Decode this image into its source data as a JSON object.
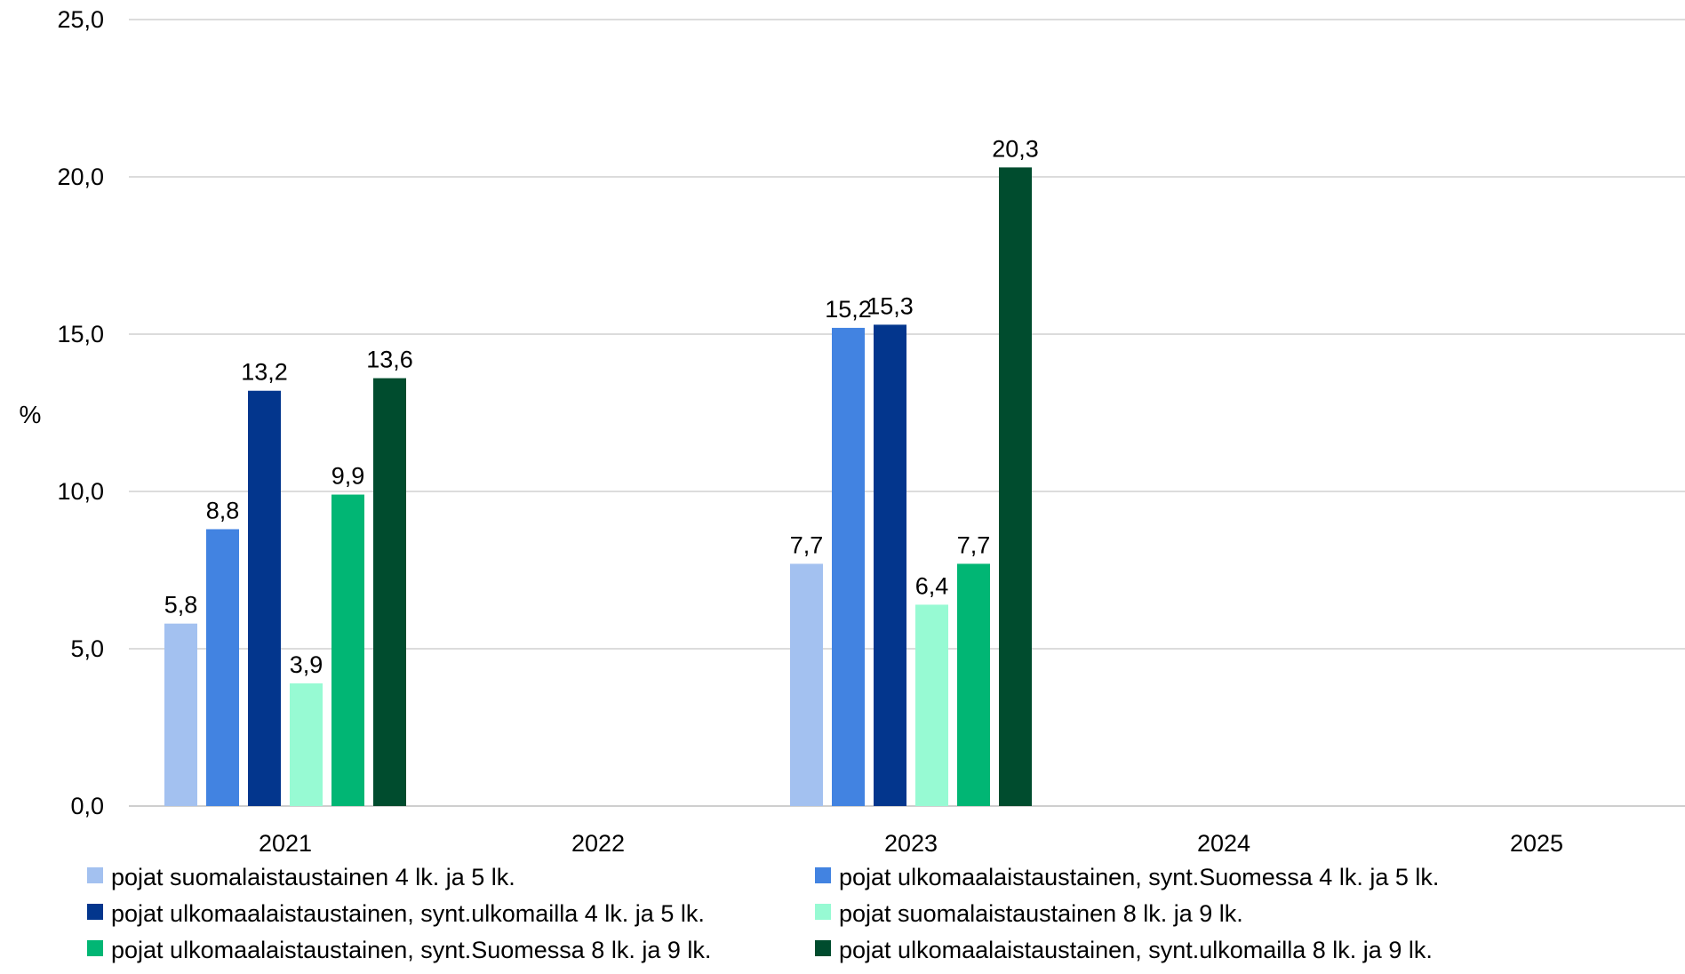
{
  "chart_data": {
    "type": "bar",
    "title": "",
    "xlabel": "",
    "ylabel": "%",
    "ylim": [
      0,
      25
    ],
    "yticks": [
      "0,0",
      "5,0",
      "10,0",
      "15,0",
      "20,0",
      "25,0"
    ],
    "grid": true,
    "legend_position": "bottom",
    "categories": [
      "2021",
      "2022",
      "2023",
      "2024",
      "2025"
    ],
    "series": [
      {
        "name": "pojat suomalaistaustainen 4 lk. ja 5 lk.",
        "color": "#A3C1F0",
        "values": [
          5.8,
          null,
          7.7,
          null,
          null
        ],
        "labels": [
          "5,8",
          "",
          "7,7",
          "",
          ""
        ]
      },
      {
        "name": "pojat ulkomaalaistaustainen, synt.Suomessa 4 lk. ja 5 lk.",
        "color": "#4283E1",
        "values": [
          8.8,
          null,
          15.2,
          null,
          null
        ],
        "labels": [
          "8,8",
          "",
          "15,2",
          "",
          ""
        ]
      },
      {
        "name": "pojat ulkomaalaistaustainen, synt.ulkomailla 4 lk. ja 5 lk.",
        "color": "#03368D",
        "values": [
          13.2,
          null,
          15.3,
          null,
          null
        ],
        "labels": [
          "13,2",
          "",
          "15,3",
          "",
          ""
        ]
      },
      {
        "name": "pojat suomalaistaustainen 8 lk. ja 9 lk.",
        "color": "#97FAD3",
        "values": [
          3.9,
          null,
          6.4,
          null,
          null
        ],
        "labels": [
          "3,9",
          "",
          "6,4",
          "",
          ""
        ]
      },
      {
        "name": "pojat ulkomaalaistaustainen, synt.Suomessa 8 lk. ja 9 lk.",
        "color": "#01B674",
        "values": [
          9.9,
          null,
          7.7,
          null,
          null
        ],
        "labels": [
          "9,9",
          "",
          "7,7",
          "",
          ""
        ]
      },
      {
        "name": "pojat ulkomaalaistaustainen, synt.ulkomailla 8 lk. ja 9 lk.",
        "color": "#004C2E",
        "values": [
          13.6,
          null,
          20.3,
          null,
          null
        ],
        "labels": [
          "13,6",
          "",
          "20,3",
          "",
          ""
        ]
      }
    ]
  }
}
